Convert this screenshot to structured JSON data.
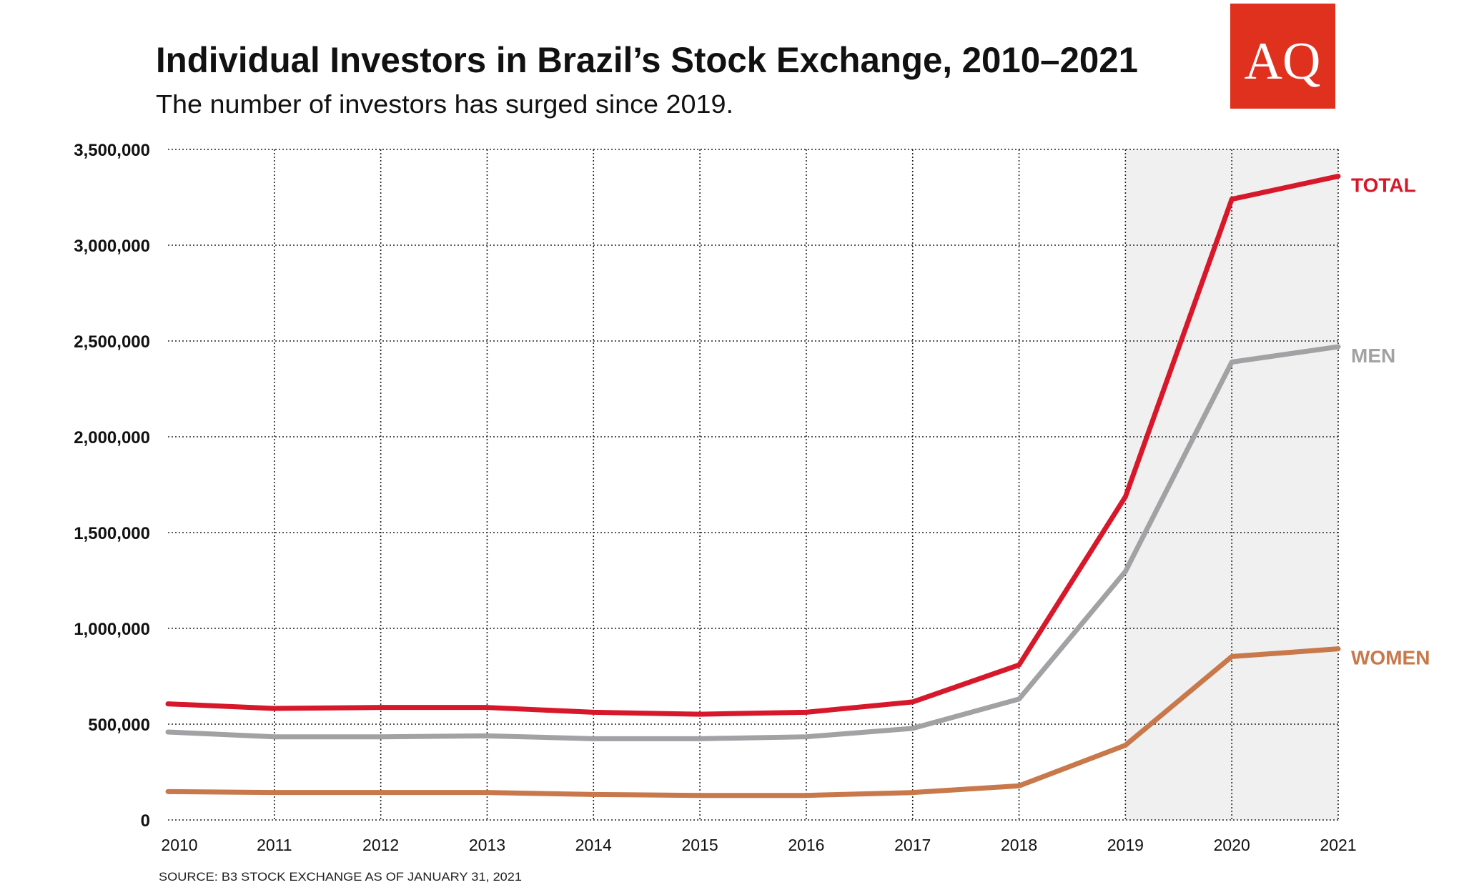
{
  "logo": {
    "text": "AQ",
    "color": "#e0301e"
  },
  "chart_data": {
    "type": "line",
    "title": "Individual Investors in Brazil’s Stock Exchange, 2010–2021",
    "subtitle": "The number of investors has surged since 2019.",
    "source": "SOURCE: B3 STOCK EXCHANGE AS OF JANUARY 31, 2021",
    "x": [
      2010,
      2011,
      2012,
      2013,
      2014,
      2015,
      2016,
      2017,
      2018,
      2019,
      2020,
      2021
    ],
    "ylim": [
      0,
      3500000
    ],
    "yticks": [
      0,
      500000,
      1000000,
      1500000,
      2000000,
      2500000,
      3000000,
      3500000
    ],
    "ytick_labels": [
      "0",
      "500,000",
      "1,000,000",
      "1,500,000",
      "2,000,000",
      "2,500,000",
      "3,000,000",
      "3,500,000"
    ],
    "grid": true,
    "shaded_range": [
      2019,
      2021
    ],
    "shade_color": "#f0f0f0",
    "legend": "direct labels at line ends",
    "series": [
      {
        "name": "TOTAL",
        "color": "#d7182a",
        "values": [
          606000,
          582000,
          587000,
          587000,
          562000,
          552000,
          562000,
          616000,
          809000,
          1687000,
          3240000,
          3360000
        ]
      },
      {
        "name": "MEN",
        "color": "#a2a2a5",
        "values": [
          459000,
          434000,
          434000,
          439000,
          424000,
          424000,
          434000,
          478000,
          631000,
          1297000,
          2390000,
          2470000
        ]
      },
      {
        "name": "WOMEN",
        "color": "#c8784a",
        "values": [
          148000,
          143000,
          143000,
          143000,
          133000,
          128000,
          128000,
          143000,
          178000,
          390000,
          853000,
          893000
        ]
      }
    ]
  }
}
